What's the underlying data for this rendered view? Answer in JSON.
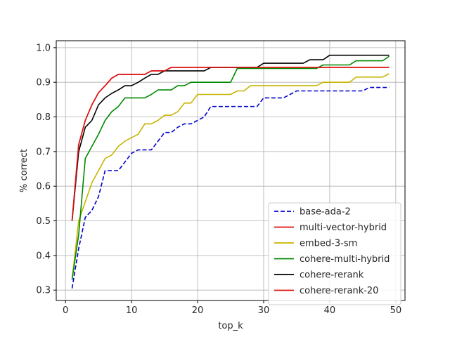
{
  "chart_data": {
    "type": "line",
    "title": "",
    "xlabel": "top_k",
    "ylabel": "% correct",
    "xlim": [
      -1.4,
      51.4
    ],
    "ylim": [
      0.27,
      1.02
    ],
    "xticks": [
      0,
      10,
      20,
      30,
      40,
      50
    ],
    "yticks": [
      0.3,
      0.4,
      0.5,
      0.6,
      0.7,
      0.8,
      0.9,
      1.0
    ],
    "xtick_labels": [
      "0",
      "10",
      "20",
      "30",
      "40",
      "50"
    ],
    "ytick_labels": [
      "0.3",
      "0.4",
      "0.5",
      "0.6",
      "0.7",
      "0.8",
      "0.9",
      "1.0"
    ],
    "grid": true,
    "legend_position": "lower-right",
    "x": [
      1,
      2,
      3,
      4,
      5,
      6,
      7,
      8,
      9,
      10,
      11,
      12,
      13,
      14,
      15,
      16,
      17,
      18,
      19,
      20,
      21,
      22,
      23,
      24,
      25,
      26,
      27,
      28,
      29,
      30,
      31,
      32,
      33,
      34,
      35,
      36,
      37,
      38,
      39,
      40,
      41,
      42,
      43,
      44,
      45,
      46,
      47,
      48,
      49
    ],
    "series": [
      {
        "name": "base-ada-2",
        "color": "#0000cc",
        "dash": "dashed",
        "values": [
          0.305,
          0.42,
          0.51,
          0.53,
          0.57,
          0.645,
          0.645,
          0.645,
          0.67,
          0.695,
          0.705,
          0.705,
          0.705,
          0.73,
          0.755,
          0.755,
          0.77,
          0.78,
          0.78,
          0.79,
          0.8,
          0.83,
          0.83,
          0.83,
          0.83,
          0.83,
          0.83,
          0.83,
          0.83,
          0.855,
          0.855,
          0.855,
          0.855,
          0.865,
          0.875,
          0.875,
          0.875,
          0.875,
          0.875,
          0.875,
          0.875,
          0.875,
          0.875,
          0.875,
          0.875,
          0.885,
          0.885,
          0.885,
          0.885
        ]
      },
      {
        "name": "multi-vector-hybrid",
        "color": "#dd1111",
        "dash": "solid",
        "values": [
          0.5,
          0.72,
          0.79,
          0.835,
          0.87,
          0.89,
          0.912,
          0.923,
          0.923,
          0.923,
          0.923,
          0.923,
          0.933,
          0.933,
          0.933,
          0.943,
          0.943,
          0.943,
          0.943,
          0.943,
          0.943,
          0.943,
          0.943,
          0.943,
          0.943,
          0.943,
          0.943,
          0.943,
          0.943,
          0.943,
          0.943,
          0.943,
          0.943,
          0.943,
          0.943,
          0.943,
          0.943,
          0.943,
          0.943,
          0.943,
          0.943,
          0.943,
          0.943,
          0.943,
          0.943,
          0.943,
          0.943,
          0.943,
          0.943
        ]
      },
      {
        "name": "embed-3-sm",
        "color": "#c8b400",
        "dash": "solid",
        "values": [
          0.33,
          0.5,
          0.555,
          0.61,
          0.645,
          0.68,
          0.69,
          0.715,
          0.73,
          0.74,
          0.75,
          0.78,
          0.78,
          0.79,
          0.805,
          0.805,
          0.815,
          0.84,
          0.84,
          0.865,
          0.865,
          0.865,
          0.865,
          0.865,
          0.865,
          0.875,
          0.875,
          0.89,
          0.89,
          0.89,
          0.89,
          0.89,
          0.89,
          0.89,
          0.89,
          0.89,
          0.89,
          0.89,
          0.9,
          0.9,
          0.9,
          0.9,
          0.9,
          0.915,
          0.915,
          0.915,
          0.915,
          0.915,
          0.925
        ]
      },
      {
        "name": "cohere-multi-hybrid",
        "color": "#008800",
        "dash": "solid",
        "values": [
          0.33,
          0.46,
          0.68,
          0.715,
          0.75,
          0.79,
          0.815,
          0.83,
          0.855,
          0.855,
          0.855,
          0.855,
          0.865,
          0.878,
          0.878,
          0.878,
          0.89,
          0.89,
          0.9,
          0.9,
          0.9,
          0.9,
          0.9,
          0.9,
          0.9,
          0.94,
          0.94,
          0.94,
          0.94,
          0.94,
          0.94,
          0.94,
          0.94,
          0.94,
          0.94,
          0.94,
          0.94,
          0.94,
          0.95,
          0.95,
          0.95,
          0.95,
          0.95,
          0.962,
          0.962,
          0.962,
          0.962,
          0.962,
          0.975
        ]
      },
      {
        "name": "cohere-rerank",
        "color": "#000000",
        "dash": "solid",
        "values": [
          0.5,
          0.7,
          0.77,
          0.79,
          0.835,
          0.855,
          0.868,
          0.878,
          0.89,
          0.89,
          0.9,
          0.912,
          0.923,
          0.923,
          0.933,
          0.933,
          0.933,
          0.933,
          0.933,
          0.933,
          0.933,
          0.943,
          0.943,
          0.943,
          0.943,
          0.943,
          0.943,
          0.943,
          0.943,
          0.955,
          0.955,
          0.955,
          0.955,
          0.955,
          0.955,
          0.955,
          0.965,
          0.965,
          0.965,
          0.978,
          0.978,
          0.978,
          0.978,
          0.978,
          0.978,
          0.978,
          0.978,
          0.978,
          0.978
        ]
      },
      {
        "name": "cohere-rerank-20",
        "color": "#dd1111",
        "dash": "solid",
        "values": [
          0.5,
          0.72,
          0.79,
          0.835,
          0.87,
          0.89,
          0.912,
          0.923,
          0.923,
          0.923,
          0.923,
          0.923,
          0.933,
          0.933,
          0.933,
          0.943,
          0.943,
          0.943,
          0.943,
          0.943,
          0.943,
          0.943,
          0.943,
          0.943,
          0.943,
          0.943,
          0.943,
          0.943,
          0.943,
          0.943,
          0.943,
          0.943,
          0.943,
          0.943,
          0.943,
          0.943,
          0.943,
          0.943,
          0.943,
          0.943,
          0.943,
          0.943,
          0.943,
          0.943,
          0.943,
          0.943,
          0.943,
          0.943,
          0.943
        ]
      }
    ]
  }
}
